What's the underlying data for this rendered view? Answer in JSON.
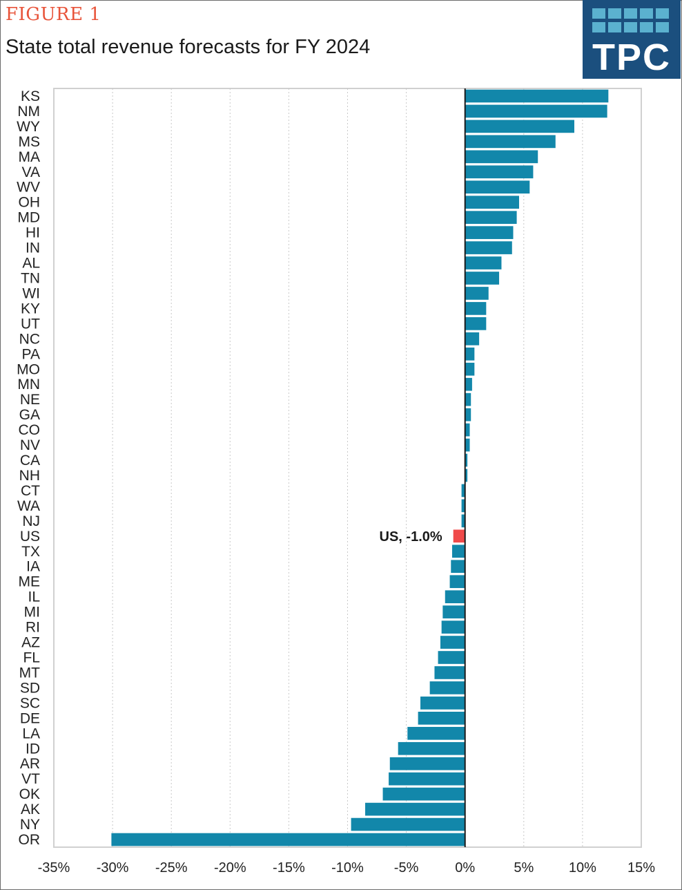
{
  "figure_label": "FIGURE 1",
  "title": "State total revenue forecasts for FY 2024",
  "logo": {
    "text": "TPC",
    "background": "#1b4f7e",
    "accent": "#5bb1cf"
  },
  "colors": {
    "bar": "#1287aa",
    "highlight": "#f04a4a",
    "grid": "#c8c8c8",
    "axis": "#1a1a1a"
  },
  "chart_data": {
    "type": "bar",
    "orientation": "horizontal",
    "title": "State total revenue forecasts for FY 2024",
    "xlabel": "",
    "ylabel": "",
    "xlim": [
      -35,
      15
    ],
    "x_ticks": [
      -35,
      -30,
      -25,
      -20,
      -15,
      -10,
      -5,
      0,
      5,
      10,
      15
    ],
    "x_tick_labels": [
      "-35%",
      "-30%",
      "-25%",
      "-20%",
      "-15%",
      "-10%",
      "-5%",
      "0%",
      "5%",
      "10%",
      "15%"
    ],
    "grid": "vertical dotted",
    "categories": [
      "KS",
      "NM",
      "WY",
      "MS",
      "MA",
      "VA",
      "WV",
      "OH",
      "MD",
      "HI",
      "IN",
      "AL",
      "TN",
      "WI",
      "KY",
      "UT",
      "NC",
      "PA",
      "MO",
      "MN",
      "NE",
      "GA",
      "CO",
      "NV",
      "CA",
      "NH",
      "CT",
      "WA",
      "NJ",
      "US",
      "TX",
      "IA",
      "ME",
      "IL",
      "MI",
      "RI",
      "AZ",
      "FL",
      "MT",
      "SD",
      "SC",
      "DE",
      "LA",
      "ID",
      "AR",
      "VT",
      "OK",
      "AK",
      "NY",
      "OR"
    ],
    "values": [
      12.2,
      12.1,
      9.3,
      7.7,
      6.2,
      5.8,
      5.5,
      4.6,
      4.4,
      4.1,
      4.0,
      3.1,
      2.9,
      2.0,
      1.8,
      1.8,
      1.2,
      0.8,
      0.8,
      0.6,
      0.5,
      0.5,
      0.4,
      0.4,
      0.2,
      0.2,
      -0.3,
      -0.3,
      -0.3,
      -1.0,
      -1.1,
      -1.2,
      -1.3,
      -1.7,
      -1.9,
      -2.0,
      -2.1,
      -2.3,
      -2.6,
      -3.0,
      -3.8,
      -4.0,
      -4.9,
      -5.7,
      -6.4,
      -6.5,
      -7.0,
      -8.5,
      -9.7,
      -30.1
    ],
    "highlight": {
      "category": "US",
      "value": -1.0,
      "label": "US, -1.0%"
    }
  }
}
